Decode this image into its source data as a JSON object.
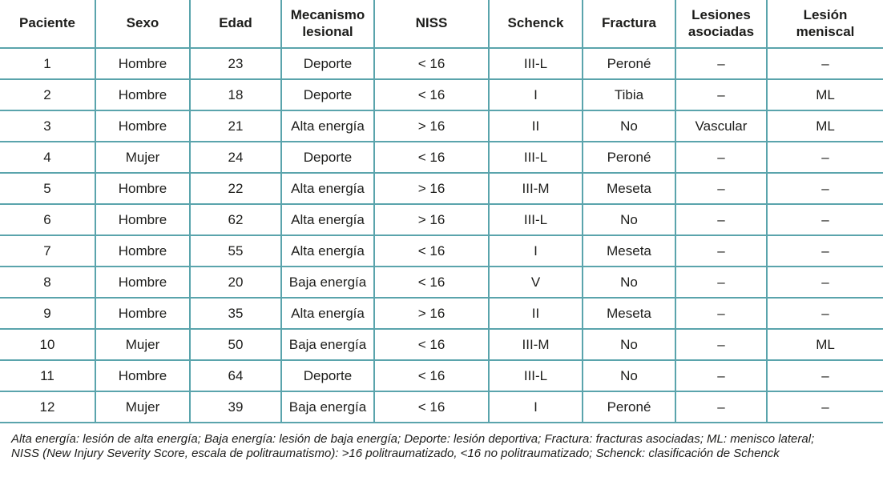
{
  "colors": {
    "table_border": "#5aa4ac",
    "text": "#1d1d1b",
    "background": "#ffffff"
  },
  "table": {
    "columns": [
      {
        "label": "Paciente"
      },
      {
        "label": "Sexo"
      },
      {
        "label": "Edad"
      },
      {
        "label": "Mecanismo lesional"
      },
      {
        "label": "NISS"
      },
      {
        "label": "Schenck"
      },
      {
        "label": "Fractura"
      },
      {
        "label": "Lesiones asociadas"
      },
      {
        "label": "Lesión meniscal"
      }
    ],
    "rows": [
      [
        "1",
        "Hombre",
        "23",
        "Deporte",
        "< 16",
        "III-L",
        "Peroné",
        "–",
        "–"
      ],
      [
        "2",
        "Hombre",
        "18",
        "Deporte",
        "< 16",
        "I",
        "Tibia",
        "–",
        "ML"
      ],
      [
        "3",
        "Hombre",
        "21",
        "Alta energía",
        "> 16",
        "II",
        "No",
        "Vascular",
        "ML"
      ],
      [
        "4",
        "Mujer",
        "24",
        "Deporte",
        "< 16",
        "III-L",
        "Peroné",
        "–",
        "–"
      ],
      [
        "5",
        "Hombre",
        "22",
        "Alta energía",
        "> 16",
        "III-M",
        "Meseta",
        "–",
        "–"
      ],
      [
        "6",
        "Hombre",
        "62",
        "Alta energía",
        "> 16",
        "III-L",
        "No",
        "–",
        "–"
      ],
      [
        "7",
        "Hombre",
        "55",
        "Alta energía",
        "< 16",
        "I",
        "Meseta",
        "–",
        "–"
      ],
      [
        "8",
        "Hombre",
        "20",
        "Baja energía",
        "< 16",
        "V",
        "No",
        "–",
        "–"
      ],
      [
        "9",
        "Hombre",
        "35",
        "Alta energía",
        "> 16",
        "II",
        "Meseta",
        "–",
        "–"
      ],
      [
        "10",
        "Mujer",
        "50",
        "Baja energía",
        "< 16",
        "III-M",
        "No",
        "–",
        "ML"
      ],
      [
        "11",
        "Hombre",
        "64",
        "Deporte",
        "< 16",
        "III-L",
        "No",
        "–",
        "–"
      ],
      [
        "12",
        "Mujer",
        "39",
        "Baja energía",
        "< 16",
        "I",
        "Peroné",
        "–",
        "–"
      ]
    ]
  },
  "footnote": {
    "lines": [
      "Alta energía: lesión de alta energía; Baja energía: lesión de baja energía; Deporte: lesión deportiva; Fractura: fracturas asociadas; ML: menisco lateral;",
      "NISS (New Injury Severity Score, escala de politraumatismo): >16 politraumatizado, <16 no politraumatizado; Schenck: clasificación de Schenck"
    ]
  }
}
